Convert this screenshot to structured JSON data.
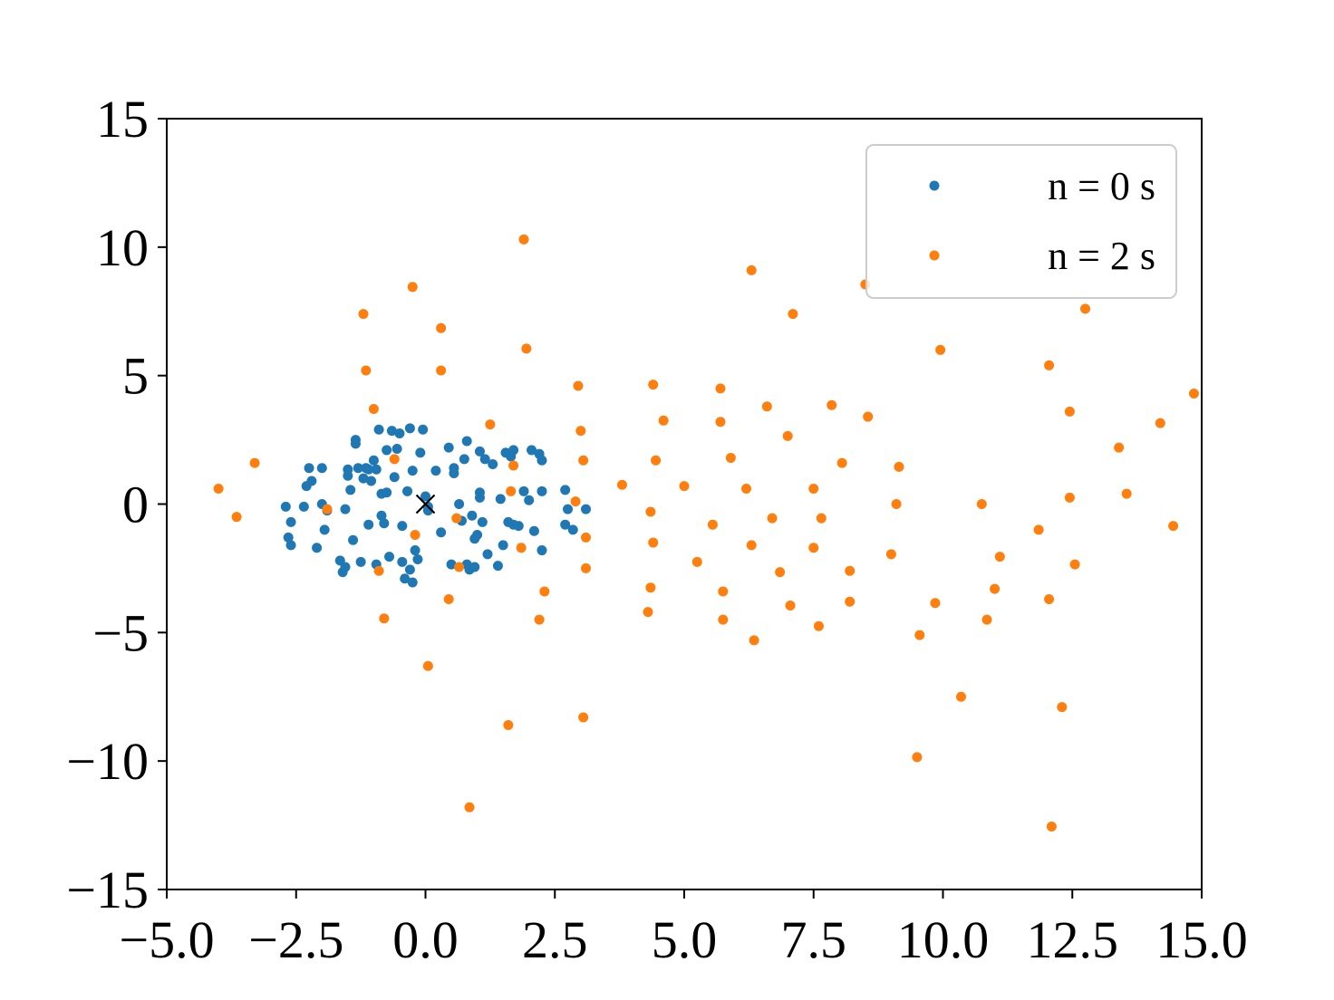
{
  "chart_data": {
    "type": "scatter",
    "title": "",
    "xlabel": "",
    "ylabel": "",
    "xlim": [
      -5.0,
      15.0
    ],
    "ylim": [
      -15,
      15
    ],
    "x_ticks": [
      -5.0,
      -2.5,
      0.0,
      2.5,
      5.0,
      7.5,
      10.0,
      12.5,
      15.0
    ],
    "x_tick_labels": [
      "−5.0",
      "−2.5",
      "0.0",
      "2.5",
      "5.0",
      "7.5",
      "10.0",
      "12.5",
      "15.0"
    ],
    "y_ticks": [
      -15,
      -10,
      -5,
      0,
      5,
      10,
      15
    ],
    "y_tick_labels": [
      "−15",
      "−10",
      "−5",
      "0",
      "5",
      "10",
      "15"
    ],
    "grid": false,
    "legend_position": "top-right",
    "series": [
      {
        "name": "n = 0 s",
        "color": "#1f77b4",
        "x": [
          -2.7,
          -2.6,
          -2.65,
          -2.6,
          -2.35,
          -2.25,
          -2.3,
          -2.2,
          -2.1,
          -2.0,
          -2.0,
          -1.95,
          -1.65,
          -1.6,
          -1.55,
          -1.5,
          -1.5,
          -1.45,
          -1.4,
          -1.35,
          -1.3,
          -1.25,
          -1.2,
          -1.15,
          -1.1,
          -1.1,
          -1.05,
          -1.0,
          -0.95,
          -0.9,
          -0.85,
          -0.85,
          -0.8,
          -0.75,
          -0.75,
          -0.7,
          -0.65,
          -0.6,
          -0.55,
          -0.5,
          -0.45,
          -0.4,
          -0.35,
          -0.3,
          -0.3,
          -0.25,
          -0.25,
          -0.2,
          -0.15,
          -0.1,
          -0.05,
          0.0,
          0.05,
          0.2,
          0.3,
          0.45,
          0.5,
          0.55,
          0.55,
          0.7,
          0.75,
          0.8,
          0.8,
          0.85,
          0.9,
          0.95,
          1.0,
          1.05,
          1.05,
          1.1,
          1.15,
          1.2,
          1.3,
          1.4,
          1.45,
          1.5,
          1.55,
          1.6,
          1.65,
          1.7,
          1.7,
          1.8,
          1.9,
          2.0,
          2.05,
          2.1,
          2.2,
          2.25,
          2.25,
          2.7,
          2.7,
          2.75,
          2.85,
          3.1,
          -1.9,
          -1.55,
          -1.35,
          -0.45,
          0.95,
          1.05,
          0.05,
          0.65,
          2.25,
          -0.95
        ],
        "y": [
          -0.1,
          -0.7,
          -1.3,
          -1.6,
          -0.1,
          1.4,
          0.7,
          0.9,
          -1.7,
          1.4,
          0.0,
          -1.0,
          -2.2,
          -2.65,
          -2.45,
          1.1,
          1.35,
          0.55,
          -1.4,
          2.5,
          1.4,
          -2.25,
          1.0,
          1.4,
          -0.8,
          1.35,
          0.9,
          1.7,
          -2.35,
          2.9,
          0.4,
          -0.45,
          -0.75,
          0.45,
          2.1,
          -2.05,
          2.85,
          1.05,
          2.15,
          2.75,
          -2.25,
          -2.9,
          0.5,
          -2.55,
          2.95,
          1.3,
          -3.05,
          -1.8,
          -2.15,
          2.0,
          2.9,
          0.3,
          -0.25,
          1.3,
          -1.1,
          2.2,
          -2.35,
          1.2,
          1.4,
          -0.65,
          1.75,
          2.45,
          -2.35,
          -2.55,
          -0.45,
          -2.45,
          -1.2,
          0.25,
          0.45,
          -0.7,
          1.75,
          -1.95,
          1.55,
          -2.4,
          0.2,
          -1.6,
          2.0,
          -0.7,
          1.85,
          2.1,
          -0.8,
          -0.85,
          0.5,
          0.15,
          2.1,
          -1.05,
          1.95,
          1.7,
          -1.8,
          0.55,
          -0.8,
          -0.2,
          -1.0,
          -0.2,
          -0.25,
          -0.2,
          2.35,
          -0.85,
          -1.35,
          2.05,
          -0.1,
          0.0,
          0.5,
          1.35
        ],
        "markers": [
          {
            "x": 0.0,
            "y": 0.0,
            "symbol": "×"
          }
        ]
      },
      {
        "name": "n = 2 s",
        "color": "#ff7f0e",
        "x": [
          -4.0,
          -3.65,
          -3.3,
          -1.9,
          -1.2,
          -1.15,
          -1.0,
          -0.9,
          -0.8,
          -0.6,
          -0.25,
          -0.2,
          0.3,
          0.3,
          0.45,
          0.05,
          0.6,
          0.65,
          0.85,
          1.25,
          1.6,
          1.65,
          1.7,
          1.85,
          1.9,
          1.95,
          2.2,
          2.3,
          2.95,
          2.9,
          3.0,
          3.05,
          3.1,
          3.1,
          3.05,
          3.8,
          4.3,
          4.35,
          4.4,
          4.4,
          4.45,
          4.35,
          4.6,
          5.0,
          5.25,
          5.55,
          5.7,
          5.7,
          5.75,
          5.75,
          5.9,
          6.2,
          6.3,
          6.35,
          6.3,
          6.6,
          6.7,
          6.85,
          7.0,
          7.05,
          7.1,
          7.5,
          7.5,
          7.6,
          7.65,
          7.85,
          8.05,
          8.2,
          8.2,
          8.5,
          8.55,
          9.0,
          9.1,
          9.15,
          9.5,
          9.55,
          9.85,
          9.95,
          10.35,
          10.75,
          10.85,
          11.0,
          11.1,
          11.85,
          12.05,
          12.1,
          12.05,
          12.3,
          12.45,
          12.45,
          12.55,
          12.75,
          13.4,
          13.55,
          14.2,
          14.45,
          14.85
        ],
        "y": [
          0.6,
          -0.5,
          1.6,
          -0.2,
          7.4,
          5.2,
          3.7,
          -2.6,
          -4.45,
          1.75,
          8.45,
          -1.2,
          6.85,
          5.2,
          -3.7,
          -6.3,
          -0.55,
          -2.45,
          -11.8,
          3.1,
          -8.6,
          0.5,
          1.5,
          -1.7,
          10.3,
          6.05,
          -4.5,
          -3.4,
          4.6,
          0.1,
          2.85,
          1.7,
          -1.3,
          -2.5,
          -8.3,
          0.75,
          -4.2,
          -3.25,
          -1.5,
          4.65,
          1.7,
          -0.3,
          3.25,
          0.7,
          -2.25,
          -0.8,
          4.5,
          3.2,
          -3.4,
          -4.5,
          1.8,
          0.6,
          -1.6,
          -5.3,
          9.1,
          3.8,
          -0.55,
          -2.65,
          2.65,
          -3.95,
          7.4,
          0.6,
          -1.7,
          -4.75,
          -0.55,
          3.85,
          1.6,
          -3.8,
          -2.6,
          8.55,
          3.4,
          -1.95,
          0.0,
          1.45,
          -9.85,
          -5.1,
          -3.85,
          6.0,
          -7.5,
          0.0,
          -4.5,
          -3.3,
          -2.05,
          -1.0,
          -3.7,
          -12.55,
          5.4,
          -7.9,
          0.25,
          3.6,
          -2.35,
          7.6,
          2.2,
          0.4,
          3.15,
          -0.85,
          4.3
        ]
      }
    ]
  }
}
